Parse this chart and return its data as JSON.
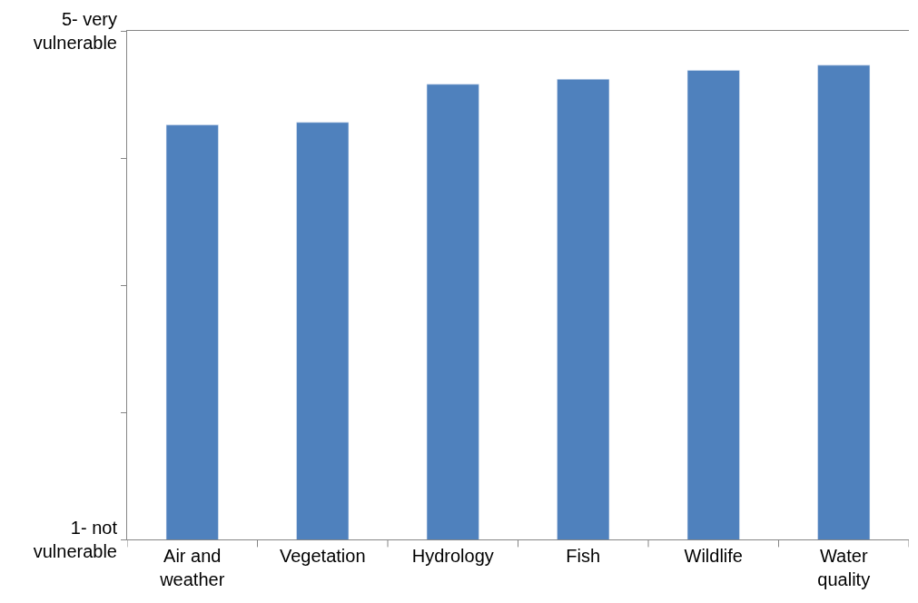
{
  "chart_data": {
    "type": "bar",
    "categories": [
      "Air and weather",
      "Vegetation",
      "Hydrology",
      "Fish",
      "Wildlife",
      "Water quality"
    ],
    "values": [
      4.26,
      4.28,
      4.58,
      4.62,
      4.69,
      4.73
    ],
    "color": "#4f81bd",
    "ylim": [
      1,
      5
    ],
    "grid": false,
    "yticks": [
      {
        "value": 1,
        "label": "1- not vulnerable"
      },
      {
        "value": 2,
        "label": null
      },
      {
        "value": 3,
        "label": null
      },
      {
        "value": 4,
        "label": null
      },
      {
        "value": 5,
        "label": "5- very vulnerable"
      }
    ]
  }
}
